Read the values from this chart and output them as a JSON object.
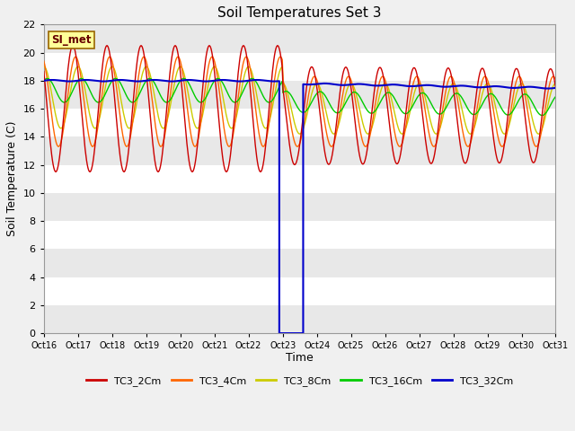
{
  "title": "Soil Temperatures Set 3",
  "xlabel": "Time",
  "ylabel": "Soil Temperature (C)",
  "ylim": [
    0,
    22
  ],
  "xlim": [
    0,
    15
  ],
  "x_tick_labels": [
    "Oct 16",
    "Oct 17",
    "Oct 18",
    "Oct 19",
    "Oct 20",
    "Oct 21",
    "Oct 22",
    "Oct 23",
    "Oct 24",
    "Oct 25",
    "Oct 26",
    "Oct 27",
    "Oct 28",
    "Oct 29",
    "Oct 30",
    "Oct 31"
  ],
  "legend_entries": [
    "TC3_2Cm",
    "TC3_4Cm",
    "TC3_8Cm",
    "TC3_16Cm",
    "TC3_32Cm"
  ],
  "line_colors": [
    "#cc0000",
    "#ff6600",
    "#cccc00",
    "#00cc00",
    "#0000cc"
  ],
  "annotation_text": "SI_met",
  "fig_bg_color": "#f0f0f0",
  "band_colors": [
    "#e8e8e8",
    "#ffffff"
  ],
  "title_fontsize": 11,
  "axis_fontsize": 9,
  "tick_fontsize": 7
}
